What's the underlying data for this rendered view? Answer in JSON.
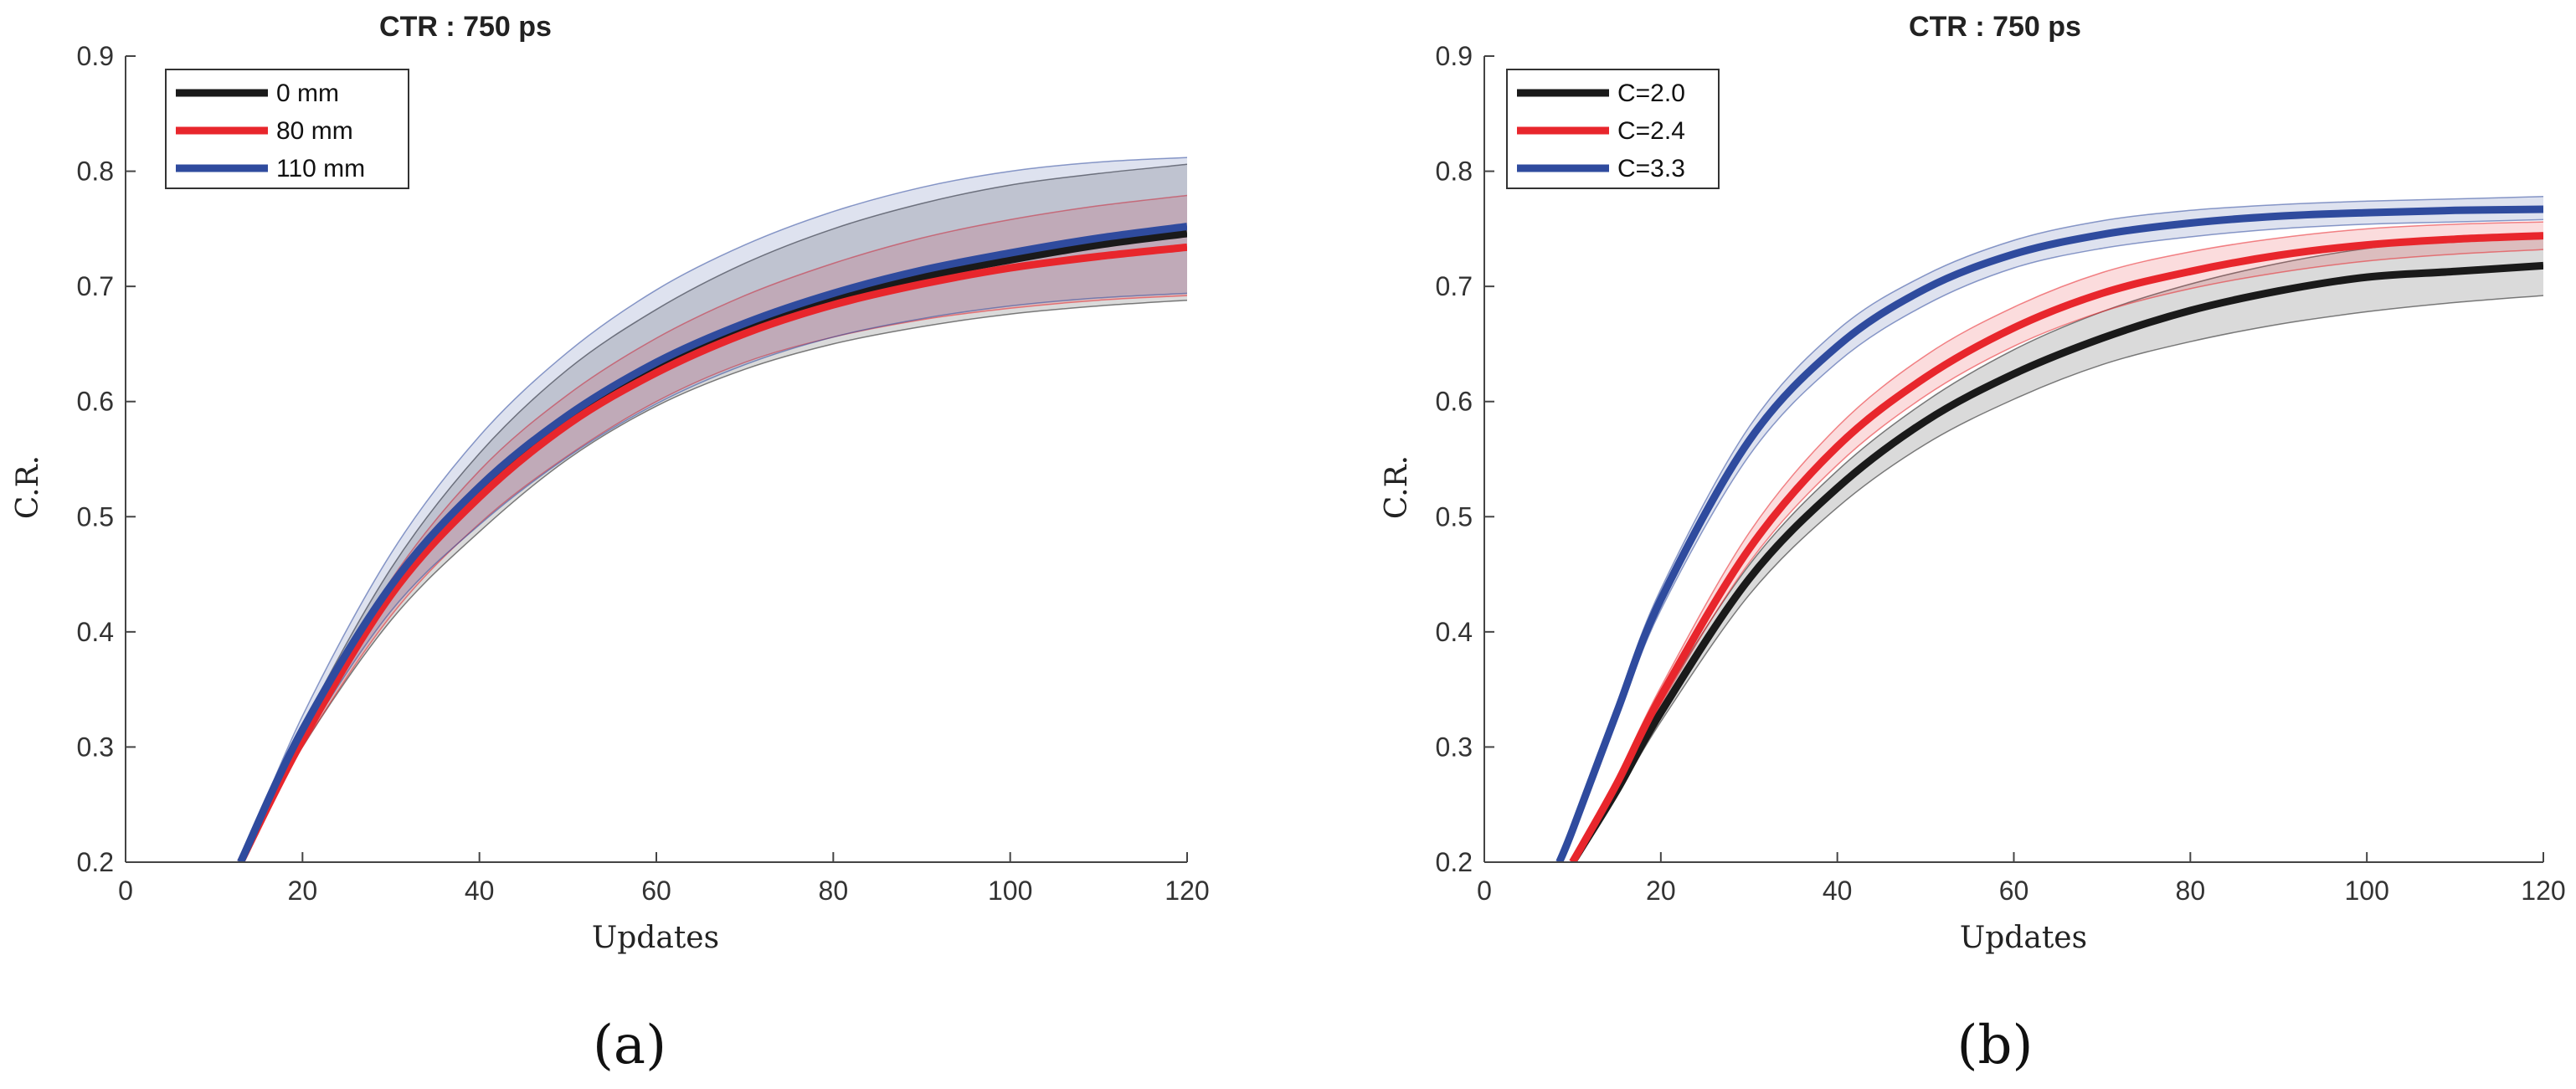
{
  "chart_data": [
    {
      "type": "line",
      "title": "CTR : 750 ps",
      "xlabel": "Updates",
      "ylabel": "C.R.",
      "caption": "(a)",
      "xlim": [
        0,
        120
      ],
      "ylim": [
        0.2,
        0.9
      ],
      "xticks": [
        0,
        20,
        40,
        60,
        80,
        100,
        120
      ],
      "yticks": [
        0.2,
        0.3,
        0.4,
        0.5,
        0.6,
        0.7,
        0.8,
        0.9
      ],
      "xtick_labels": [
        "0",
        "20",
        "40",
        "60",
        "80",
        "100",
        "120"
      ],
      "ytick_labels": [
        "0.2",
        "0.3",
        "0.4",
        "0.5",
        "0.6",
        "0.7",
        "0.8",
        "0.9"
      ],
      "legend_position": "top-left",
      "x": [
        13,
        20,
        30,
        40,
        50,
        60,
        70,
        80,
        90,
        100,
        110,
        120
      ],
      "series": [
        {
          "name": "0 mm",
          "color": "#1a1a1a",
          "values": [
            0.2,
            0.31,
            0.437,
            0.524,
            0.585,
            0.628,
            0.662,
            0.688,
            0.708,
            0.723,
            0.736,
            0.746
          ],
          "band_upper": [
            0.2,
            0.318,
            0.455,
            0.555,
            0.628,
            0.68,
            0.72,
            0.75,
            0.772,
            0.788,
            0.798,
            0.806
          ],
          "band_lower": [
            0.2,
            0.3,
            0.41,
            0.487,
            0.55,
            0.596,
            0.628,
            0.65,
            0.665,
            0.676,
            0.683,
            0.688
          ]
        },
        {
          "name": "80 mm",
          "color": "#e8262c",
          "values": [
            0.2,
            0.306,
            0.432,
            0.517,
            0.58,
            0.625,
            0.659,
            0.684,
            0.702,
            0.716,
            0.726,
            0.734
          ],
          "band_upper": [
            0.2,
            0.312,
            0.445,
            0.54,
            0.606,
            0.655,
            0.692,
            0.72,
            0.742,
            0.758,
            0.77,
            0.779
          ],
          "band_lower": [
            0.2,
            0.3,
            0.414,
            0.494,
            0.553,
            0.6,
            0.634,
            0.656,
            0.671,
            0.681,
            0.688,
            0.692
          ]
        },
        {
          "name": "110 mm",
          "color": "#2f4b9e",
          "values": [
            0.2,
            0.315,
            0.44,
            0.526,
            0.588,
            0.634,
            0.668,
            0.694,
            0.714,
            0.729,
            0.742,
            0.752
          ],
          "band_upper": [
            0.2,
            0.327,
            0.468,
            0.57,
            0.643,
            0.697,
            0.736,
            0.765,
            0.786,
            0.8,
            0.808,
            0.812
          ],
          "band_lower": [
            0.2,
            0.303,
            0.418,
            0.493,
            0.552,
            0.598,
            0.632,
            0.656,
            0.672,
            0.683,
            0.69,
            0.694
          ]
        }
      ]
    },
    {
      "type": "line",
      "title": "CTR : 750 ps",
      "xlabel": "Updates",
      "ylabel": "C.R.",
      "caption": "(b)",
      "xlim": [
        0,
        120
      ],
      "ylim": [
        0.2,
        0.9
      ],
      "xticks": [
        0,
        20,
        40,
        60,
        80,
        100,
        120
      ],
      "yticks": [
        0.2,
        0.3,
        0.4,
        0.5,
        0.6,
        0.7,
        0.8,
        0.9
      ],
      "xtick_labels": [
        "0",
        "20",
        "40",
        "60",
        "80",
        "100",
        "120"
      ],
      "ytick_labels": [
        "0.2",
        "0.3",
        "0.4",
        "0.5",
        "0.6",
        "0.7",
        "0.8",
        "0.9"
      ],
      "legend_position": "top-left",
      "x": [
        8.5,
        10,
        15,
        20,
        30,
        40,
        50,
        60,
        70,
        80,
        90,
        100,
        110,
        120
      ],
      "series": [
        {
          "name": "C=2.0",
          "color": "#1a1a1a",
          "values": [
            null,
            0.2,
            0.262,
            0.33,
            0.446,
            0.525,
            0.583,
            0.624,
            0.655,
            0.679,
            0.696,
            0.708,
            0.713,
            0.718
          ],
          "band_upper": [
            null,
            0.2,
            0.268,
            0.34,
            0.458,
            0.54,
            0.6,
            0.645,
            0.678,
            0.702,
            0.72,
            0.733,
            0.741,
            0.746
          ],
          "band_lower": [
            null,
            0.2,
            0.258,
            0.322,
            0.432,
            0.508,
            0.563,
            0.602,
            0.632,
            0.652,
            0.667,
            0.678,
            0.686,
            0.692
          ]
        },
        {
          "name": "C=2.4",
          "color": "#e8262c",
          "values": [
            null,
            0.2,
            0.268,
            0.344,
            0.472,
            0.561,
            0.621,
            0.664,
            0.694,
            0.713,
            0.727,
            0.736,
            0.741,
            0.744
          ],
          "band_upper": [
            null,
            0.2,
            0.273,
            0.352,
            0.486,
            0.578,
            0.64,
            0.682,
            0.712,
            0.73,
            0.742,
            0.75,
            0.754,
            0.756
          ],
          "band_lower": [
            null,
            0.2,
            0.264,
            0.337,
            0.46,
            0.545,
            0.605,
            0.648,
            0.678,
            0.698,
            0.712,
            0.722,
            0.728,
            0.732
          ]
        },
        {
          "name": "C=3.3",
          "color": "#2f4b9e",
          "values": [
            0.2,
            0.228,
            0.33,
            0.428,
            0.566,
            0.648,
            0.698,
            0.728,
            0.745,
            0.755,
            0.761,
            0.764,
            0.766,
            0.767
          ],
          "band_upper": [
            0.2,
            0.232,
            0.337,
            0.437,
            0.578,
            0.662,
            0.71,
            0.74,
            0.757,
            0.766,
            0.771,
            0.774,
            0.776,
            0.778
          ],
          "band_lower": [
            0.2,
            0.224,
            0.323,
            0.419,
            0.553,
            0.634,
            0.684,
            0.716,
            0.733,
            0.743,
            0.75,
            0.754,
            0.756,
            0.758
          ]
        }
      ]
    }
  ]
}
